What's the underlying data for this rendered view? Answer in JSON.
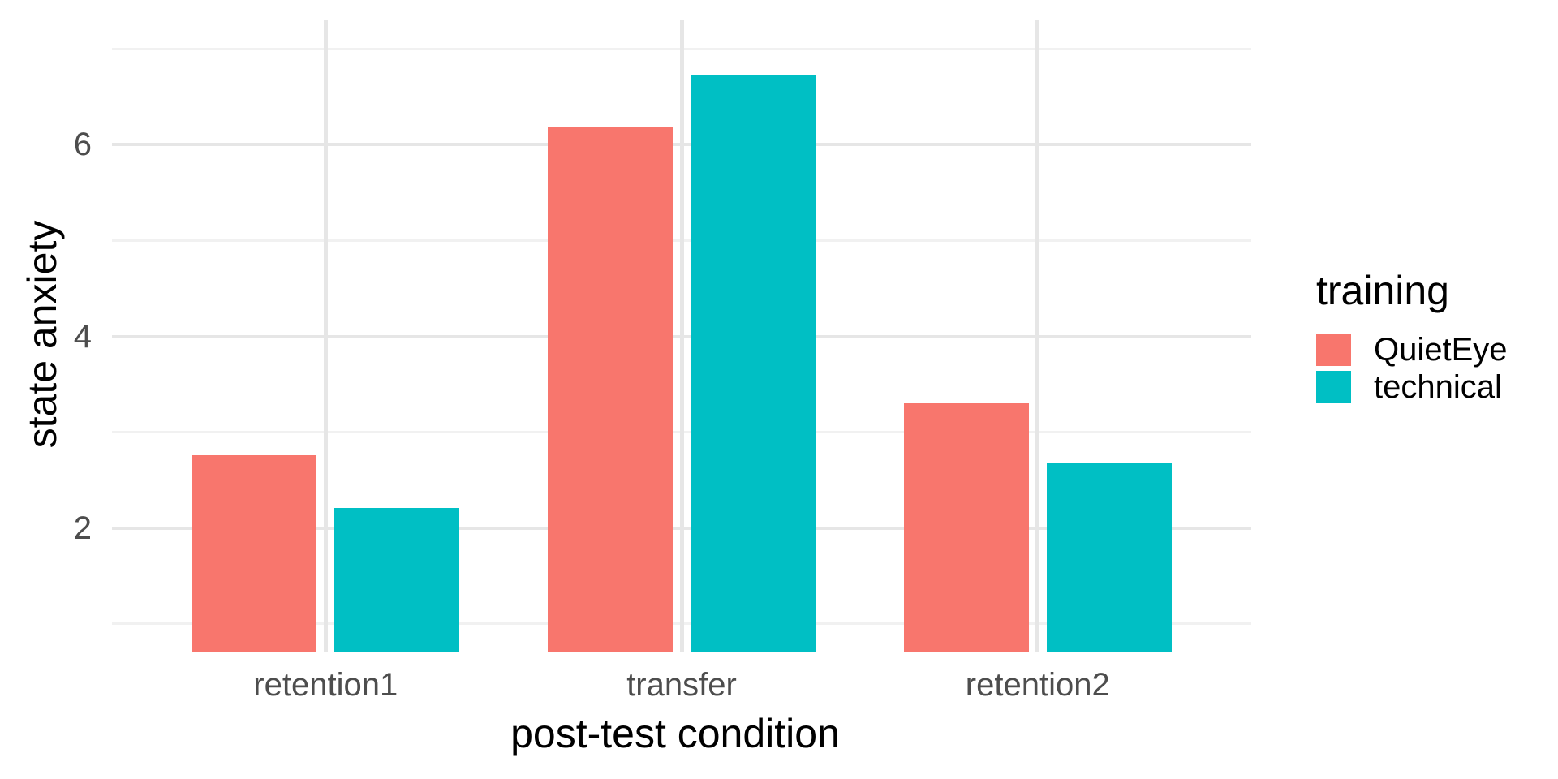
{
  "chart_data": {
    "type": "bar",
    "title": "",
    "categories": [
      "retention1",
      "transfer",
      "retention2"
    ],
    "series": [
      {
        "name": "QuietEye",
        "color": "#F8766D",
        "values": [
          2.76,
          6.19,
          3.3
        ]
      },
      {
        "name": "technical",
        "color": "#00BFC4",
        "values": [
          2.21,
          6.72,
          2.67
        ]
      }
    ],
    "xlabel": "post-test condition",
    "ylabel": "state anxiety",
    "y_ticks": [
      2,
      4,
      6
    ],
    "y_minor_ticks": [
      1,
      3,
      5,
      7
    ],
    "ylim": [
      0.7,
      7.3
    ],
    "bars_clipped_at_bottom": true,
    "legend_title": "training",
    "legend_position": "right",
    "grid": true,
    "colors": {
      "grid_major": "#E6E6E6",
      "grid_minor": "#F1F1F1",
      "axis_tick_text": "#4D4D4D",
      "axis_title_text": "#000000",
      "background": "#FFFFFF"
    }
  }
}
